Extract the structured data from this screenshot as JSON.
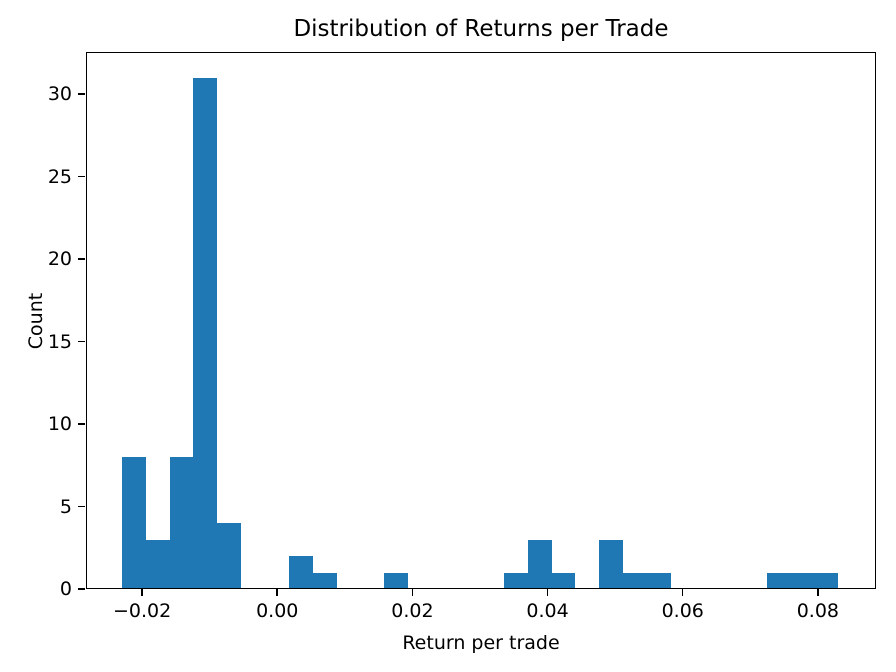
{
  "chart_data": {
    "type": "bar",
    "subtype": "histogram",
    "title": "Distribution of Returns per Trade",
    "xlabel": "Return per trade",
    "ylabel": "Count",
    "bar_color": "#1f77b4",
    "axis_color": "#000000",
    "background_color": "#ffffff",
    "grid": false,
    "legend": false,
    "xlim": [
      -0.0283,
      0.0886
    ],
    "ylim": [
      0,
      32.55
    ],
    "x_ticks": [
      -0.02,
      0.0,
      0.02,
      0.04,
      0.06,
      0.08
    ],
    "x_tick_labels": [
      "−0.02",
      "0.00",
      "0.02",
      "0.04",
      "0.06",
      "0.08"
    ],
    "y_ticks": [
      0,
      5,
      10,
      15,
      20,
      25,
      30
    ],
    "y_tick_labels": [
      "0",
      "5",
      "10",
      "15",
      "20",
      "25",
      "30"
    ],
    "bin_edges": [
      -0.023,
      -0.019467,
      -0.015933,
      -0.0124,
      -0.008867,
      -0.005333,
      -0.0018,
      0.001733,
      0.005267,
      0.0088,
      0.012333,
      0.015867,
      0.0194,
      0.022933,
      0.026467,
      0.03,
      0.033533,
      0.037067,
      0.0406,
      0.044133,
      0.047667,
      0.0512,
      0.054733,
      0.058267,
      0.0618,
      0.065333,
      0.068867,
      0.0724,
      0.075933,
      0.079467,
      0.083
    ],
    "counts": [
      8,
      3,
      8,
      31,
      4,
      0,
      0,
      2,
      1,
      0,
      0,
      1,
      0,
      0,
      0,
      0,
      1,
      3,
      1,
      0,
      3,
      1,
      1,
      0,
      0,
      0,
      0,
      1,
      1,
      1
    ],
    "total_count": 71
  }
}
